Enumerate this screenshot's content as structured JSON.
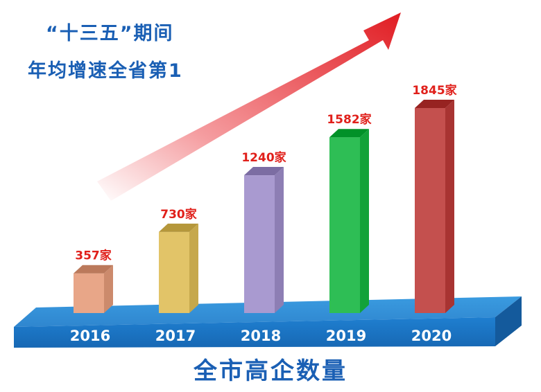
{
  "headline": {
    "line1": "“十三五”期间",
    "line2": "年均增速全省第1"
  },
  "footer": {
    "title": "全市高企数量"
  },
  "chart_data": {
    "type": "bar",
    "categories": [
      "2016",
      "2017",
      "2018",
      "2019",
      "2020"
    ],
    "values": [
      357,
      730,
      1240,
      1582,
      1845
    ],
    "data_labels": [
      "357家",
      "730家",
      "1240家",
      "1582家",
      "1845家"
    ],
    "title": "",
    "xlabel": "",
    "ylabel": "",
    "ylim": [
      0,
      1845
    ],
    "grid": false,
    "style": "3d-columns-on-blue-platform-with-rising-arrow",
    "colors": [
      "#e8a688",
      "#e2c468",
      "#a99ad0",
      "#2ebe55",
      "#c4504e"
    ],
    "label_color": "#e0201b",
    "title_color": "#1a5fb4",
    "platform_color": "#1e78c8"
  }
}
